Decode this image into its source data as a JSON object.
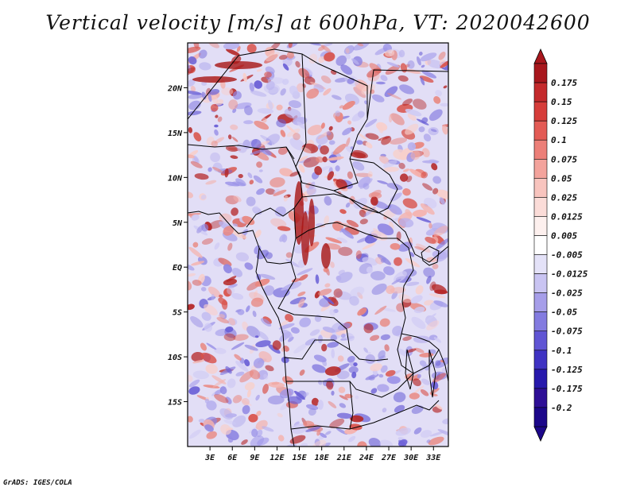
{
  "title": "Vertical velocity [m/s] at 600hPa, VT: 2020042600",
  "credit": "GrADS: IGES/COLA",
  "map": {
    "lat_labels": [
      "20N",
      "15N",
      "10N",
      "5N",
      "EQ",
      "5S",
      "10S",
      "15S"
    ],
    "lat_values": [
      20,
      15,
      10,
      5,
      0,
      -5,
      -10,
      -15
    ],
    "lon_labels": [
      "3E",
      "6E",
      "9E",
      "12E",
      "15E",
      "18E",
      "21E",
      "24E",
      "27E",
      "30E",
      "33E"
    ],
    "lon_values": [
      3,
      6,
      9,
      12,
      15,
      18,
      21,
      24,
      27,
      30,
      33
    ],
    "lat_range": [
      -20,
      25
    ],
    "lon_range": [
      0,
      35
    ],
    "field_color_scheme": [
      "#2a0fa0",
      "#ffffff",
      "#a81414"
    ]
  },
  "colorbar": {
    "labels": [
      "0.175",
      "0.15",
      "0.125",
      "0.1",
      "0.075",
      "0.05",
      "0.025",
      "0.0125",
      "0.005",
      "-0.005",
      "-0.0125",
      "-0.025",
      "-0.05",
      "-0.075",
      "-0.1",
      "-0.125",
      "-0.175",
      "-0.2"
    ],
    "colors": [
      "#a8171d",
      "#c42a2c",
      "#d63d3a",
      "#e35b55",
      "#ec7f78",
      "#f3a39c",
      "#f8c4be",
      "#fbdcd8",
      "#fdf0ee",
      "#ffffff",
      "#e4e2f8",
      "#c9c4f2",
      "#a69ee9",
      "#837be0",
      "#6055d4",
      "#3f33c3",
      "#2719ac",
      "#2e0f96",
      "#1c078a"
    ],
    "top_color": "#a8171d",
    "bottom_color": "#1c078a"
  }
}
